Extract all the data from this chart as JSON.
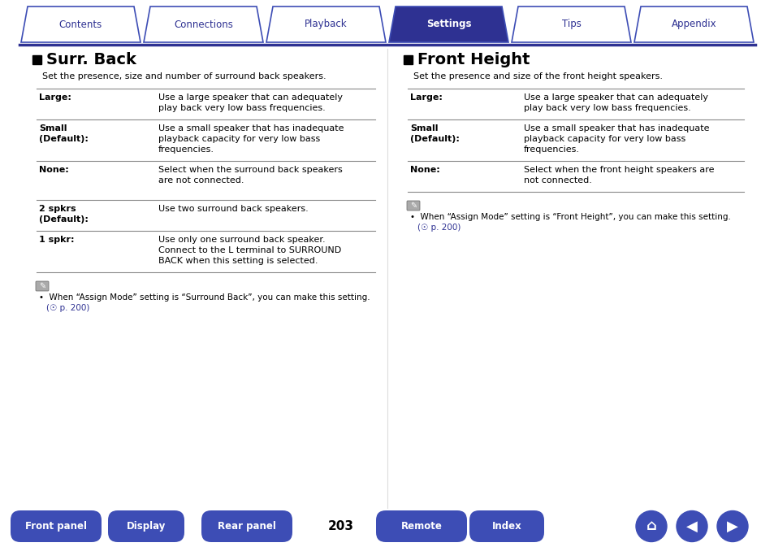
{
  "title_tabs": [
    "Contents",
    "Connections",
    "Playback",
    "Settings",
    "Tips",
    "Appendix"
  ],
  "active_tab": "Settings",
  "tab_color_active": "#2e3192",
  "tab_color_inactive": "#ffffff",
  "tab_text_active": "#ffffff",
  "tab_text_inactive": "#2e3192",
  "tab_border_color": "#3d4db5",
  "page_bg": "#ffffff",
  "section1_title": "Surr. Back",
  "section1_intro": "Set the presence, size and number of surround back speakers.",
  "section1_rows": [
    {
      "label": "Large:",
      "desc": "Use a large speaker that can adequately\nplay back very low bass frequencies."
    },
    {
      "label": "Small\n(Default):",
      "desc": "Use a small speaker that has inadequate\nplayback capacity for very low bass\nfrequencies."
    },
    {
      "label": "None:",
      "desc": "Select when the surround back speakers\nare not connected."
    },
    {
      "label": "2 spkrs\n(Default):",
      "desc": "Use two surround back speakers."
    },
    {
      "label": "1 spkr:",
      "desc": "Use only one surround back speaker.\nConnect to the L terminal to SURROUND\nBACK when this setting is selected."
    }
  ],
  "section1_note_line1": "When “Assign Mode” setting is “Surround Back”, you can make this setting.",
  "section1_note_line2": "(☉ p. 200)",
  "section2_title": "Front Height",
  "section2_intro": "Set the presence and size of the front height speakers.",
  "section2_rows": [
    {
      "label": "Large:",
      "desc": "Use a large speaker that can adequately\nplay back very low bass frequencies."
    },
    {
      "label": "Small\n(Default):",
      "desc": "Use a small speaker that has inadequate\nplayback capacity for very low bass\nfrequencies."
    },
    {
      "label": "None:",
      "desc": "Select when the front height speakers are\nnot connected."
    }
  ],
  "section2_note_line1": "When “Assign Mode” setting is “Front Height”, you can make this setting.",
  "section2_note_line2": "(☉ p. 200)",
  "bottom_buttons": [
    "Front panel",
    "Display",
    "Rear panel",
    "Remote",
    "Index"
  ],
  "page_number": "203",
  "btn_color": "#3d4db5",
  "btn_text_color": "#ffffff",
  "link_color": "#2e3192",
  "divider_color": "#2e3192",
  "header_line_color": "#2e3192",
  "row_line_color": "#888888"
}
